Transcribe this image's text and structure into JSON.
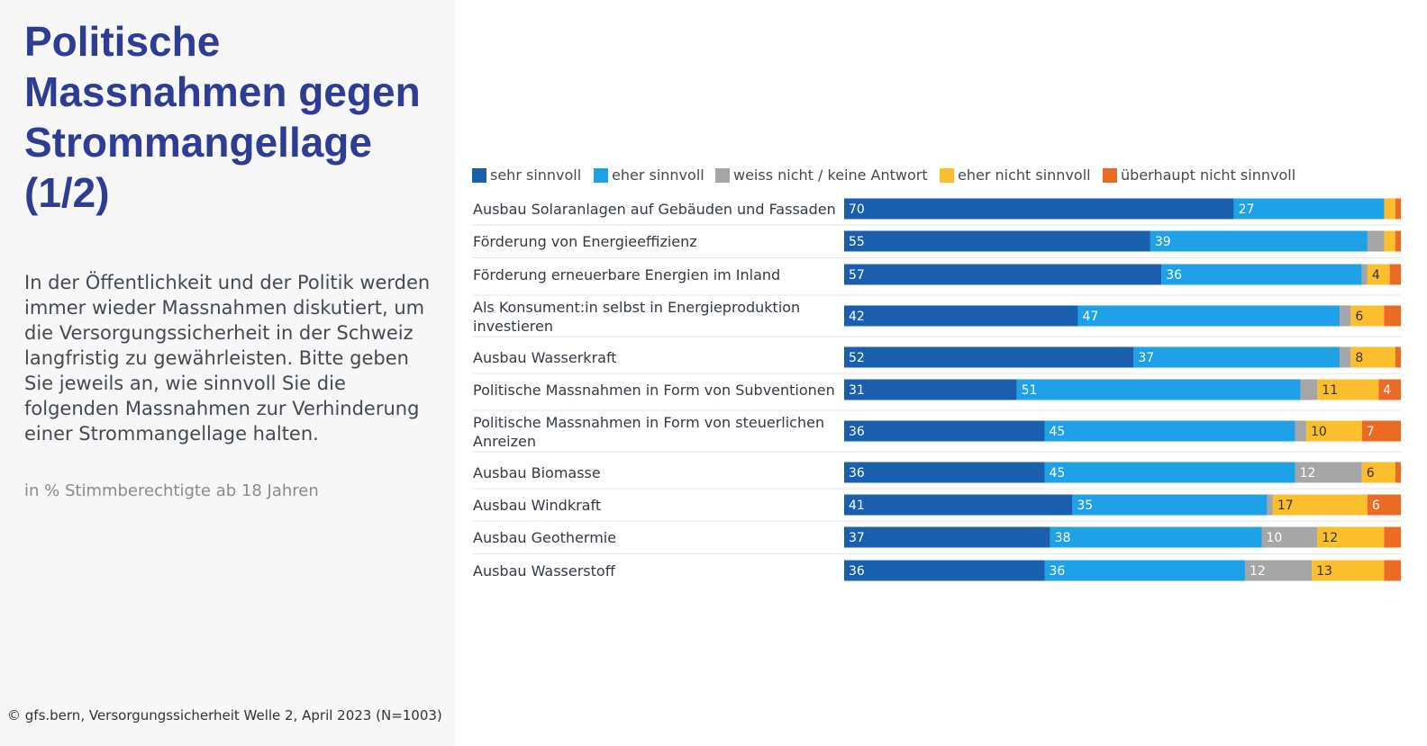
{
  "title": "Politische Massnahmen gegen Strommangellage (1/2)",
  "description": "In der Öffentlichkeit und der Politik werden immer wieder Massnahmen diskutiert, um die Versorgungssicherheit in der Schweiz langfristig zu gewährleisten. Bitte geben Sie jeweils an, wie sinnvoll Sie die folgenden Massnahmen zur Verhinderung einer Strommangellage halten.",
  "unit_note": "in % Stimmberechtigte ab 18 Jahren",
  "source": "© gfs.bern, Versorgungssicherheit Welle 2, April 2023 (N=1003)",
  "chart_data": {
    "type": "bar",
    "orientation": "horizontal",
    "stacked": true,
    "xlim": [
      0,
      100
    ],
    "legend_position": "top",
    "categories": [
      "Ausbau Solaranlagen auf Gebäuden und Fassaden",
      "Förderung von Energieeffizienz",
      "Förderung erneuerbare Energien im Inland",
      "Als Konsument:in selbst in Energieproduktion investieren",
      "Ausbau Wasserkraft",
      "Politische Massnahmen in Form von Subventionen",
      "Politische Massnahmen in Form von steuerlichen Anreizen",
      "Ausbau Biomasse",
      "Ausbau Windkraft",
      "Ausbau Geothermie",
      "Ausbau Wasserstoff"
    ],
    "series": [
      {
        "name": "sehr sinnvoll",
        "color": "#1a5fae",
        "label_color": "#ffffff",
        "values": [
          70,
          55,
          57,
          42,
          52,
          31,
          36,
          36,
          41,
          37,
          36
        ]
      },
      {
        "name": "eher sinnvoll",
        "color": "#1ea1e6",
        "label_color": "#ffffff",
        "values": [
          27,
          39,
          36,
          47,
          37,
          51,
          45,
          45,
          35,
          38,
          36
        ]
      },
      {
        "name": "weiss nicht / keine Antwort",
        "color": "#a6a6a6",
        "label_color": "#ffffff",
        "values": [
          0,
          3,
          1,
          2,
          2,
          3,
          2,
          12,
          1,
          10,
          12
        ]
      },
      {
        "name": "eher nicht sinnvoll",
        "color": "#fbbf2e",
        "label_color": "#333333",
        "values": [
          2,
          2,
          4,
          6,
          8,
          11,
          10,
          6,
          17,
          12,
          13
        ]
      },
      {
        "name": "überhaupt nicht sinnvoll",
        "color": "#eb6b24",
        "label_color": "#ffffff",
        "values": [
          1,
          1,
          2,
          3,
          1,
          4,
          7,
          1,
          6,
          3,
          3
        ]
      }
    ],
    "labels_shown": [
      [
        true,
        true,
        false,
        false,
        false
      ],
      [
        true,
        true,
        false,
        false,
        false
      ],
      [
        true,
        true,
        false,
        true,
        false
      ],
      [
        true,
        true,
        false,
        true,
        false
      ],
      [
        true,
        true,
        false,
        true,
        false
      ],
      [
        true,
        true,
        false,
        true,
        true
      ],
      [
        true,
        true,
        false,
        true,
        true
      ],
      [
        true,
        true,
        true,
        true,
        false
      ],
      [
        true,
        true,
        false,
        true,
        true
      ],
      [
        true,
        true,
        true,
        true,
        false
      ],
      [
        true,
        true,
        true,
        true,
        false
      ]
    ]
  }
}
